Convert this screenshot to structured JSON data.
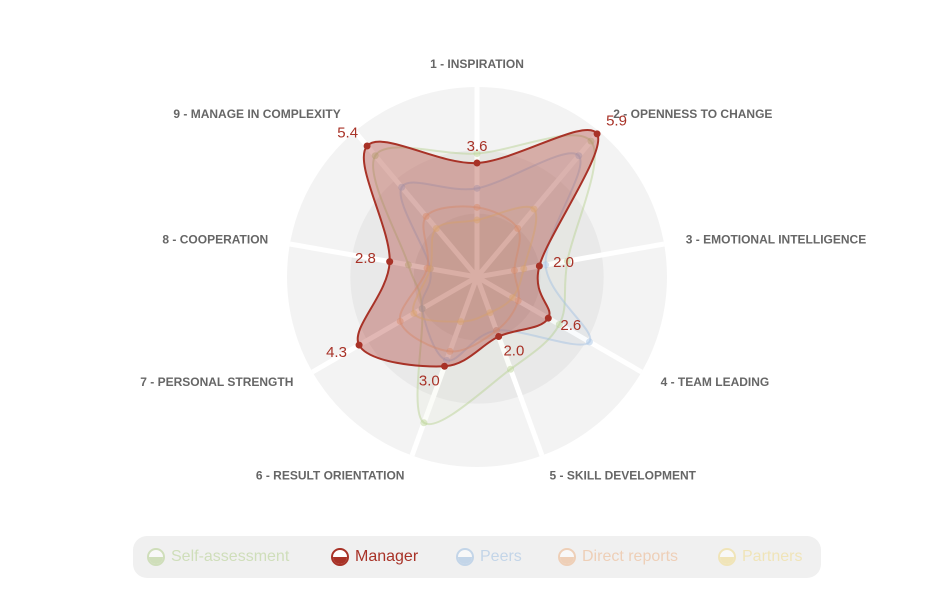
{
  "chart_data": {
    "type": "radar",
    "categories": [
      "1 - INSPIRATION",
      "2 - OPENNESS TO CHANGE",
      "3 - EMOTIONAL INTELLIGENCE",
      "4 - TEAM LEADING",
      "5 - SKILL DEVELOPMENT",
      "6 - RESULT ORIENTATION",
      "7 - PERSONAL STRENGTH",
      "8 - COOPERATION",
      "9 - MANAGE IN COMPLEXITY"
    ],
    "ylim": [
      0,
      6
    ],
    "yticks": [
      2,
      4,
      6
    ],
    "grid": true,
    "legend": "bottom",
    "series": [
      {
        "name": "Self-assessment",
        "color": "#b5d08f",
        "highlighted": false,
        "values": [
          3.9,
          5.6,
          2.9,
          3.0,
          3.1,
          4.9,
          2.0,
          2.2,
          5.0
        ]
      },
      {
        "name": "Manager",
        "color": "#a83227",
        "highlighted": true,
        "values": [
          3.6,
          5.9,
          2.0,
          2.6,
          2.0,
          3.0,
          4.3,
          2.8,
          5.4
        ],
        "value_labels": [
          "3.6",
          "5.9",
          "2.0",
          "2.6",
          "2.0",
          "3.0",
          "4.3",
          "2.8",
          "5.4"
        ]
      },
      {
        "name": "Peers",
        "color": "#9fbfe3",
        "highlighted": false,
        "values": [
          2.8,
          5.0,
          2.2,
          4.1,
          1.8,
          2.8,
          2.0,
          1.5,
          3.7
        ]
      },
      {
        "name": "Direct reports",
        "color": "#eeb58a",
        "highlighted": false,
        "values": [
          2.2,
          2.0,
          1.2,
          1.5,
          1.8,
          2.5,
          2.8,
          1.6,
          2.5
        ]
      },
      {
        "name": "Partners",
        "color": "#f0dc8c",
        "highlighted": false,
        "values": [
          1.8,
          2.8,
          1.5,
          1.3,
          1.2,
          1.5,
          2.3,
          1.5,
          2.0
        ]
      }
    ]
  }
}
